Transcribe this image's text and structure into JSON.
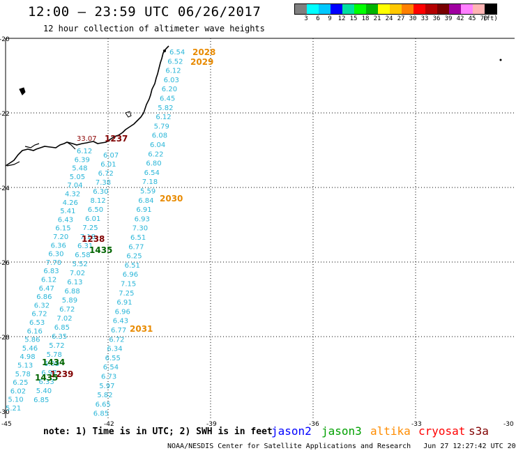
{
  "title": "12:00 — 23:59 UTC 06/26/2017",
  "subtitle": "12 hour collection of altimeter wave heights",
  "legend": {
    "colors": [
      "#808080",
      "#00ffff",
      "#00c8ff",
      "#0000ff",
      "#00e0a0",
      "#00ff00",
      "#00b400",
      "#ffff00",
      "#ffc800",
      "#ff8000",
      "#ff0000",
      "#b40000",
      "#780000",
      "#a000a0",
      "#ff80ff",
      "#ffb4b4",
      "#000000"
    ],
    "labels": [
      "3",
      "6",
      "9",
      "12",
      "15",
      "18",
      "21",
      "24",
      "27",
      "30",
      "33",
      "36",
      "39",
      "42",
      "45",
      "70",
      "(ft)"
    ]
  },
  "map": {
    "lat_labels": [
      "-20",
      "-22",
      "-24",
      "-26",
      "-28",
      "-30"
    ],
    "lon_labels": [
      "-45",
      "-42",
      "-39",
      "-36",
      "-33",
      "-30"
    ]
  },
  "passes": [
    {
      "sat": "altika",
      "color": "#e88a00",
      "label": "2028",
      "values": []
    },
    {
      "sat": "altika",
      "color": "#e88a00",
      "label": "2029",
      "values": []
    },
    {
      "sat": "altika",
      "color": "#e88a00",
      "label": "2030",
      "values": []
    },
    {
      "sat": "altika",
      "color": "#e88a00",
      "label": "2031",
      "values": []
    },
    {
      "sat": "cryosat",
      "color": "#800000",
      "label": "1237",
      "values": []
    },
    {
      "sat": "cryosat",
      "color": "#800000",
      "label": "1238",
      "values": []
    },
    {
      "sat": "cryosat",
      "color": "#800000",
      "label": "1239",
      "values": []
    },
    {
      "sat": "jason3",
      "color": "#006400",
      "label": "1434",
      "values": []
    },
    {
      "sat": "jason3",
      "color": "#006400",
      "label": "1435",
      "values": []
    },
    {
      "sat": "jason3",
      "color": "#006400",
      "label": "1435",
      "values": []
    }
  ],
  "track_east": [
    "6.54",
    "6.52",
    "6.12",
    "6.03",
    "6.20",
    "6.45",
    "5.82",
    "6.12",
    "5.79",
    "6.08",
    "6.04",
    "6.22",
    "6.80",
    "6.54",
    "7.18",
    "5.59",
    "6.84",
    "6.91",
    "6.93",
    "7.30",
    "6.51",
    "6.77",
    "6.25",
    "6.51",
    "6.96",
    "7.15",
    "7.25",
    "6.91",
    "6.96",
    "6.43",
    "6.77",
    "6.72",
    "6.34",
    "6.55",
    "6.54",
    "6.73",
    "5.97",
    "5.82",
    "6.65",
    "6.85"
  ],
  "track_mid": [
    "6.07",
    "6.01",
    "6.72",
    "7.38",
    "6.30",
    "8.12",
    "6.50",
    "6.01",
    "7.25",
    "7.18",
    "6.31",
    "6.58",
    "5.52",
    "7.02",
    "6.13",
    "6.88",
    "5.89",
    "6.72",
    "7.02",
    "6.85",
    "6.35",
    "5.72",
    "5.78",
    "6.08",
    "6.97",
    "6.33",
    "5.40",
    "6.85"
  ],
  "track_west": [
    "6.12",
    "6.39",
    "5.48",
    "5.05",
    "7.04",
    "4.32",
    "4.26",
    "5.41",
    "6.43",
    "6.15",
    "7.20",
    "6.36",
    "6.30",
    "7.70",
    "6.83",
    "6.12",
    "6.47",
    "6.86",
    "6.32",
    "6.72",
    "6.53",
    "6.16",
    "5.86",
    "5.46",
    "4.98",
    "5.13",
    "5.78",
    "6.25",
    "6.02",
    "5.10",
    "5.21"
  ],
  "coast_value": "33.07",
  "note": "note: 1) Time is in UTC; 2) SWH is in feet",
  "satellites": [
    {
      "name": "jason2",
      "color": "#0000ff"
    },
    {
      "name": "jason3",
      "color": "#00a000"
    },
    {
      "name": "altika",
      "color": "#ff8c00"
    },
    {
      "name": "cryosat",
      "color": "#ff0000"
    },
    {
      "name": "s3a",
      "color": "#800000"
    }
  ],
  "credit": "NOAA/NESDIS Center for Satellite Applications and Research   Jun 27 12:27:42 UTC 2017"
}
